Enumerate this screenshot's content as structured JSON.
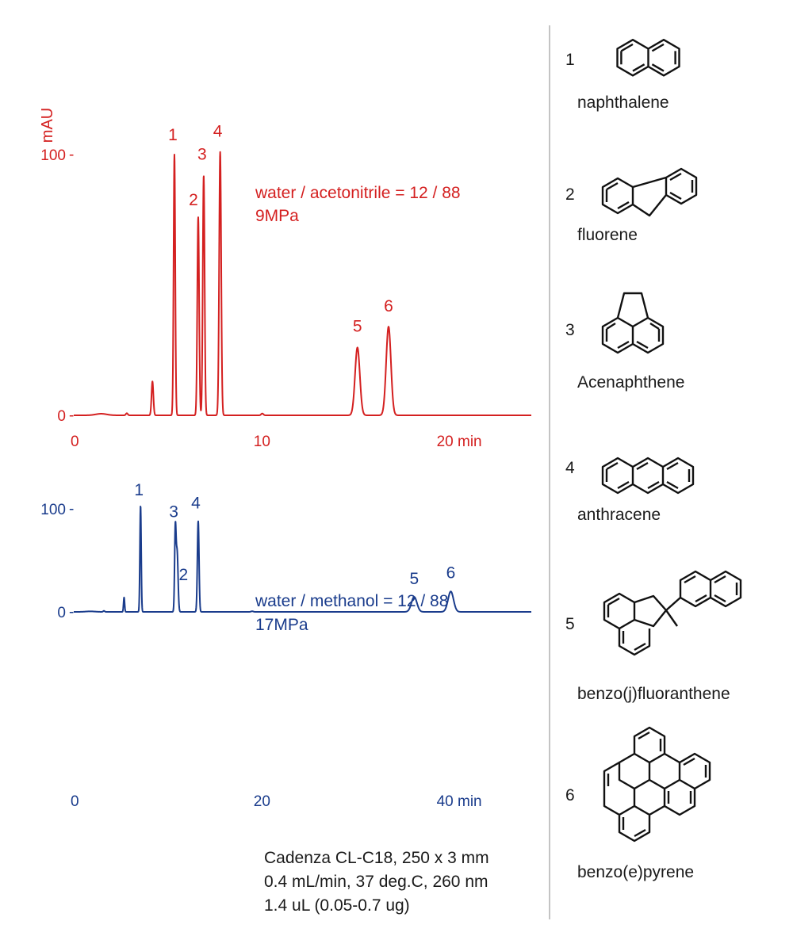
{
  "chart_data": [
    {
      "type": "line",
      "color": "#d42020",
      "ylabel": "mAU",
      "xlim": [
        0,
        25
      ],
      "ylim": [
        0,
        100
      ],
      "x_ticks": [
        {
          "value": 0,
          "label": "0"
        },
        {
          "value": 10,
          "label": "10"
        },
        {
          "value": 20,
          "label": "20 min"
        }
      ],
      "y_ticks": [
        {
          "value": 0,
          "label": "0"
        },
        {
          "value": 100,
          "label": "100"
        }
      ],
      "annotation": [
        "water / acetonitrile = 12 / 88",
        "9MPa"
      ],
      "peaks": [
        {
          "label": "",
          "t": 4.3,
          "height": 13,
          "width": 0.05
        },
        {
          "label": "1",
          "t": 5.5,
          "height": 100,
          "width": 0.045
        },
        {
          "label": "2",
          "t": 6.8,
          "height": 76,
          "width": 0.05
        },
        {
          "label": "3",
          "t": 7.1,
          "height": 92,
          "width": 0.05
        },
        {
          "label": "4",
          "t": 8.0,
          "height": 101,
          "width": 0.055
        },
        {
          "label": "5",
          "t": 15.5,
          "height": 26,
          "width": 0.13
        },
        {
          "label": "6",
          "t": 17.2,
          "height": 34,
          "width": 0.13
        }
      ],
      "minor_peaks": [
        {
          "t": 1.5,
          "height": 0.6,
          "width": 0.3
        },
        {
          "t": 2.9,
          "height": 0.8,
          "width": 0.05
        },
        {
          "t": 10.3,
          "height": 0.7,
          "width": 0.06
        }
      ]
    },
    {
      "type": "line",
      "color": "#1a3c8c",
      "xlim": [
        0,
        50
      ],
      "ylim": [
        0,
        100
      ],
      "x_ticks": [
        {
          "value": 0,
          "label": "0"
        },
        {
          "value": 20,
          "label": "20"
        },
        {
          "value": 40,
          "label": "40  min"
        }
      ],
      "y_ticks": [
        {
          "value": 0,
          "label": "0"
        },
        {
          "value": 100,
          "label": "100"
        }
      ],
      "annotation": [
        "water / methanol = 12 / 88",
        "17MPa"
      ],
      "peaks": [
        {
          "label": "",
          "t": 5.5,
          "height": 14,
          "width": 0.06
        },
        {
          "label": "1",
          "t": 7.3,
          "height": 103,
          "width": 0.07
        },
        {
          "label": "3",
          "t": 11.1,
          "height": 79,
          "width": 0.08
        },
        {
          "label": "2",
          "t": 11.3,
          "height": 57,
          "width": 0.1
        },
        {
          "label": "4",
          "t": 13.6,
          "height": 88,
          "width": 0.09
        },
        {
          "label": "5",
          "t": 37.2,
          "height": 14.5,
          "width": 0.3
        },
        {
          "label": "6",
          "t": 41.2,
          "height": 19.8,
          "width": 0.3
        }
      ],
      "minor_peaks": [
        {
          "t": 1.8,
          "height": 0.5,
          "width": 0.5
        },
        {
          "t": 3.3,
          "height": 1.0,
          "width": 0.08
        },
        {
          "t": 19.5,
          "height": 0.6,
          "width": 0.12
        }
      ]
    }
  ],
  "conditions": [
    "Cadenza CL-C18, 250 x 3 mm",
    "0.4 mL/min, 37 deg.C, 260 nm",
    "1.4 uL (0.05-0.7 ug)"
  ],
  "compounds": [
    {
      "number": "1",
      "name": "naphthalene"
    },
    {
      "number": "2",
      "name": "fluorene"
    },
    {
      "number": "3",
      "name": "Acenaphthene"
    },
    {
      "number": "4",
      "name": "anthracene"
    },
    {
      "number": "5",
      "name": "benzo(j)fluoranthene"
    },
    {
      "number": "6",
      "name": "benzo(e)pyrene"
    }
  ]
}
